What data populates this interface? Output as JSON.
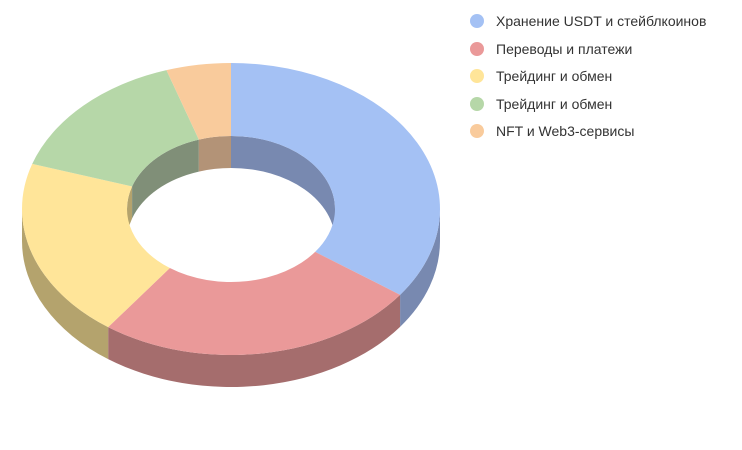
{
  "chart_data": {
    "type": "pie",
    "style": "3d-donut",
    "title": "",
    "legend_position": "top-right",
    "categories": [
      "Хранение USDT и стейблкоинов",
      "Переводы и платежи",
      "Трейдинг и обмен",
      "Трейдинг и обмен",
      "NFT и Web3-сервисы"
    ],
    "values": [
      35,
      25,
      20,
      15,
      5
    ],
    "colors": [
      "#a4c1f4",
      "#ea9999",
      "#ffe599",
      "#b6d7a8",
      "#f9cb9c"
    ],
    "side_colors": [
      "#7889b0",
      "#a56d6d",
      "#b4a36d",
      "#808f78",
      "#b39377"
    ]
  }
}
